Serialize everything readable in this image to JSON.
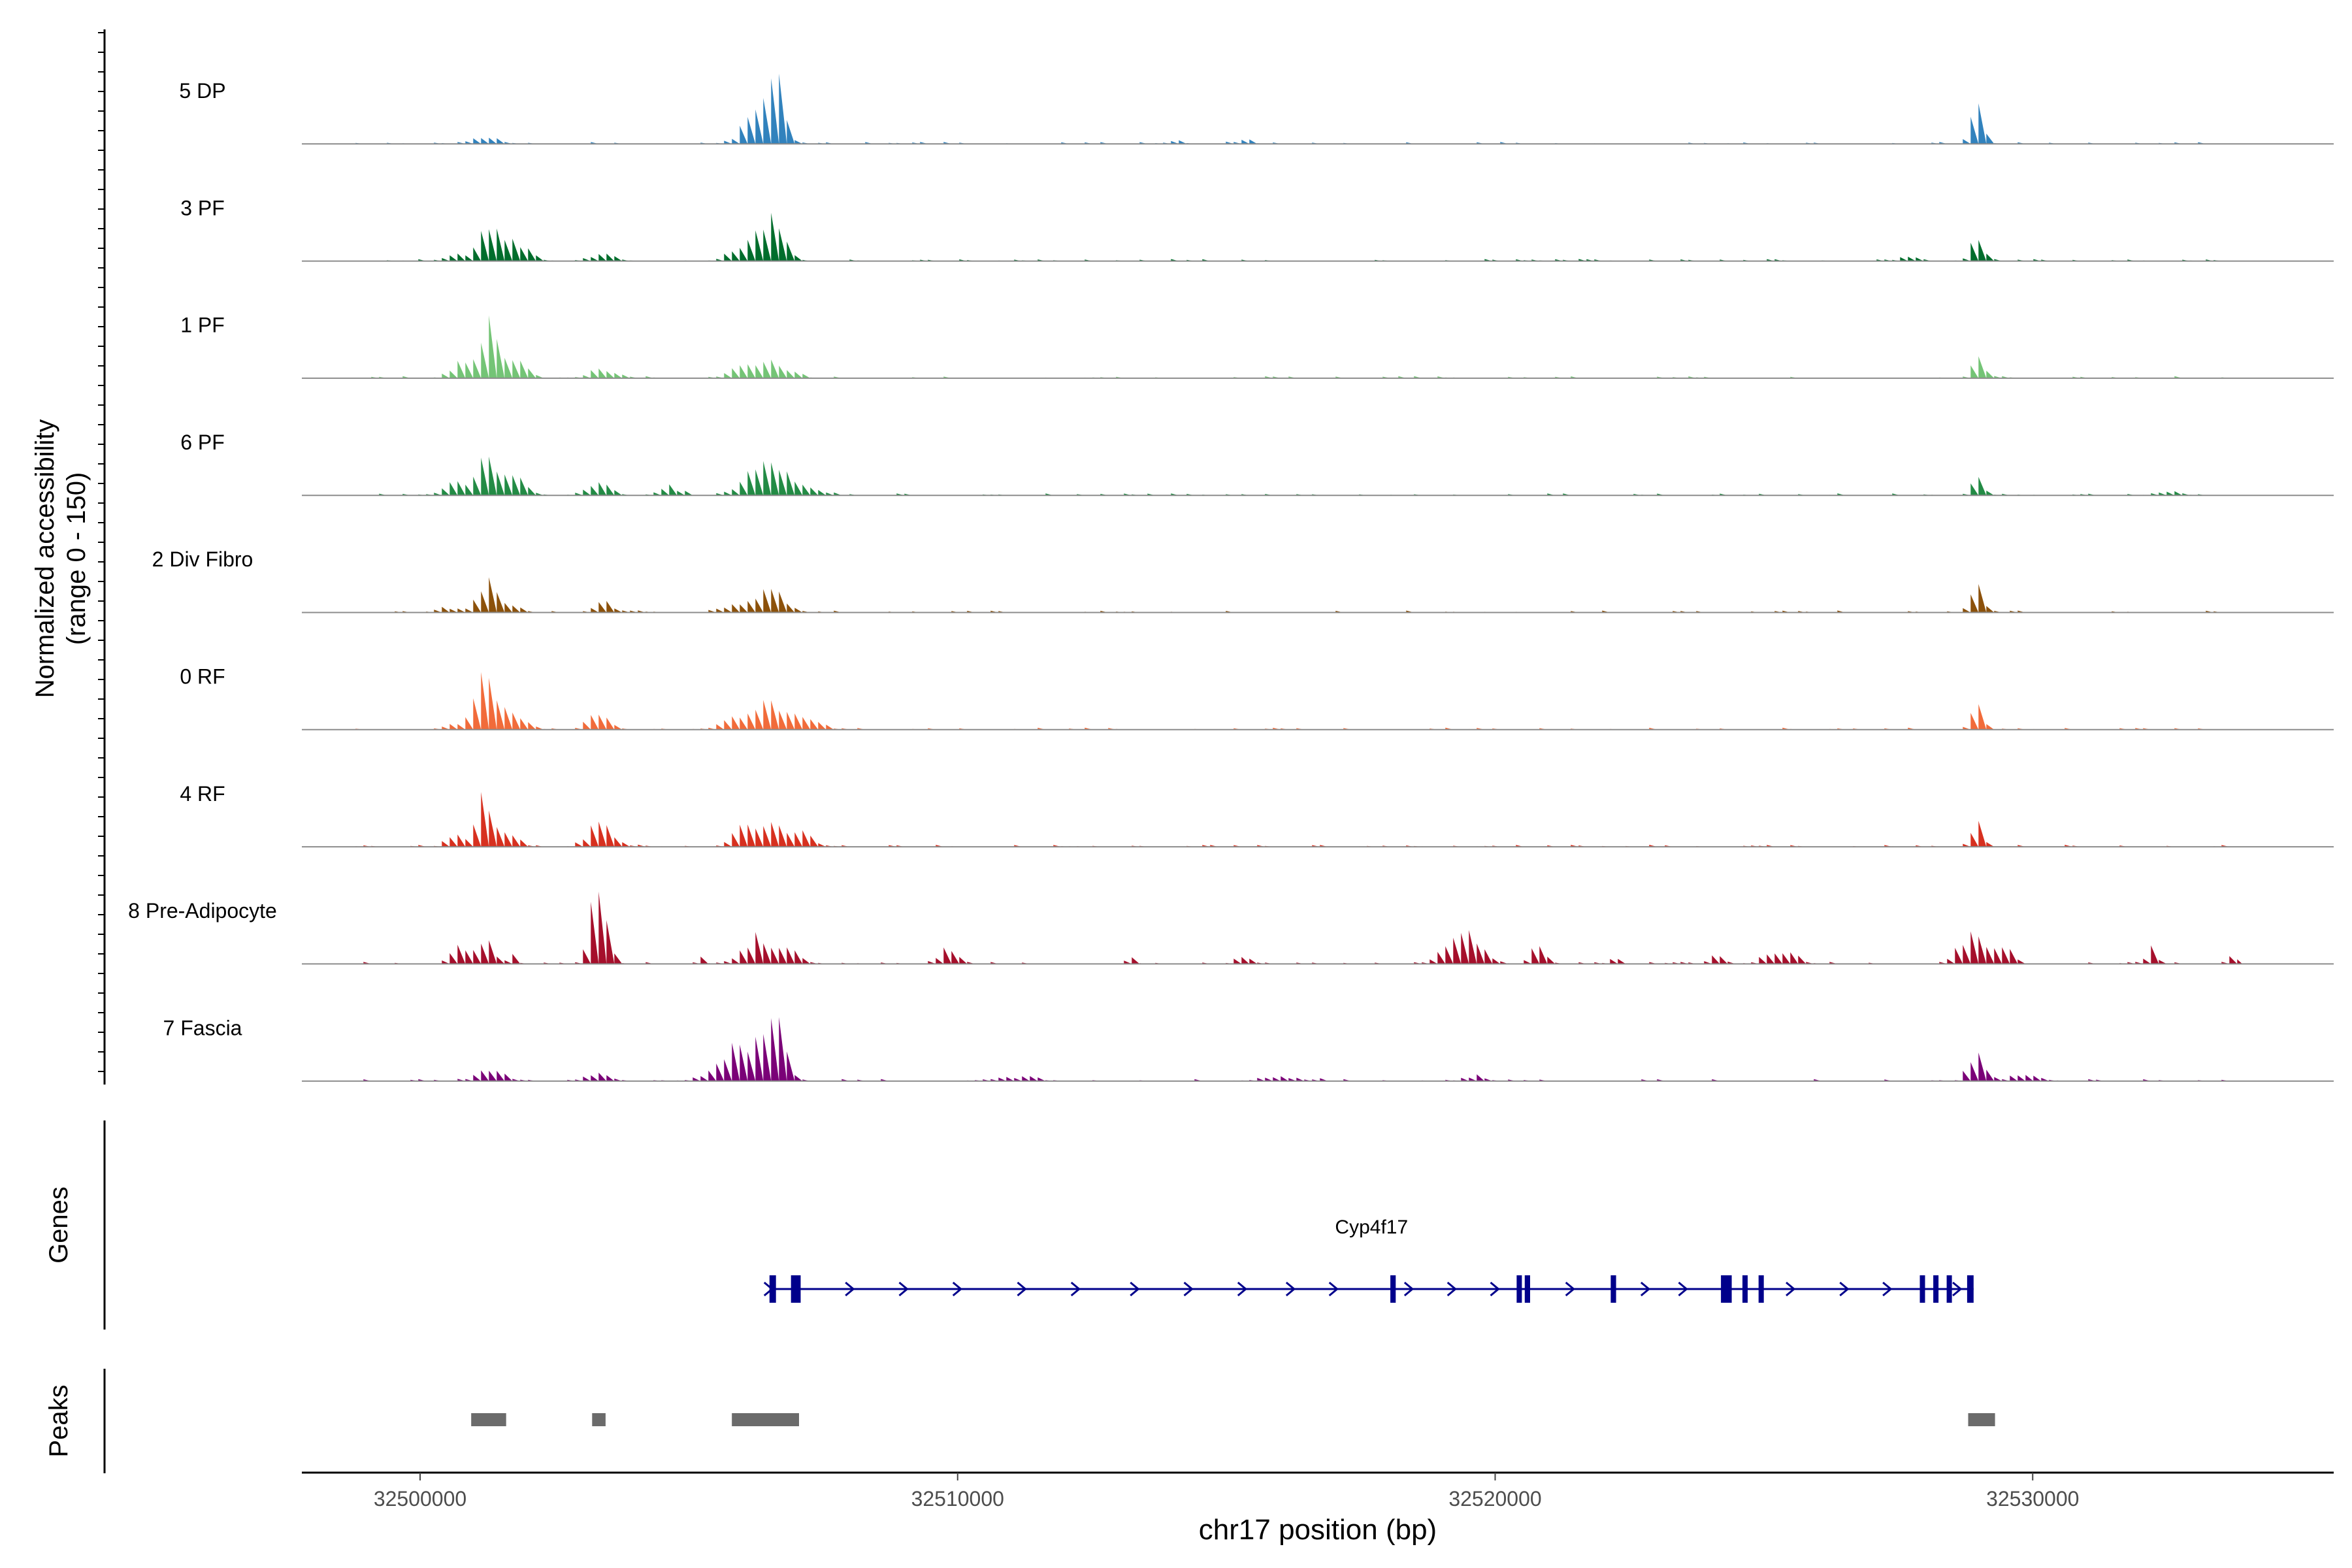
{
  "chart_data": {
    "type": "coverage-track",
    "xlabel": "chr17 position (bp)",
    "xlim": [
      32497800,
      32535600
    ],
    "x_ticks": [
      32500000,
      32510000,
      32520000,
      32530000
    ],
    "x_tick_labels": [
      "32500000",
      "32510000",
      "32520000",
      "32530000"
    ],
    "ylabel_line1": "Normalized accessibility",
    "ylabel_line2": "(range 0 - 150)",
    "ylim": [
      0,
      150
    ],
    "tracks": [
      {
        "name": "5 DP",
        "color": "#3182BD",
        "peaks": [
          [
            32501200,
            12,
            250
          ],
          [
            32506300,
            50,
            300
          ],
          [
            32506600,
            95,
            140
          ],
          [
            32514000,
            5,
            200
          ],
          [
            32515300,
            10,
            140
          ],
          [
            32528950,
            80,
            120
          ]
        ]
      },
      {
        "name": "3 PF",
        "color": "#006D2C",
        "peaks": [
          [
            32500600,
            10,
            200
          ],
          [
            32501300,
            60,
            230
          ],
          [
            32501800,
            28,
            240
          ],
          [
            32503400,
            12,
            200
          ],
          [
            32506200,
            40,
            330
          ],
          [
            32506600,
            55,
            190
          ],
          [
            32527700,
            8,
            200
          ],
          [
            32528950,
            42,
            110
          ]
        ]
      },
      {
        "name": "1 PF",
        "color": "#74C476",
        "peaks": [
          [
            32500700,
            28,
            180
          ],
          [
            32501250,
            85,
            170
          ],
          [
            32501700,
            40,
            220
          ],
          [
            32503400,
            15,
            280
          ],
          [
            32506000,
            18,
            260
          ],
          [
            32506600,
            28,
            260
          ],
          [
            32528950,
            45,
            110
          ]
        ]
      },
      {
        "name": "6 PF",
        "color": "#238B45",
        "peaks": [
          [
            32500600,
            22,
            220
          ],
          [
            32501200,
            60,
            180
          ],
          [
            32501700,
            42,
            230
          ],
          [
            32503300,
            20,
            240
          ],
          [
            32504600,
            15,
            200
          ],
          [
            32506100,
            35,
            240
          ],
          [
            32506600,
            60,
            220
          ],
          [
            32507200,
            15,
            240
          ],
          [
            32528950,
            38,
            110
          ],
          [
            32532500,
            8,
            220
          ]
        ]
      },
      {
        "name": "2 Div Fibro",
        "color": "#8C510A",
        "peaks": [
          [
            32500500,
            10,
            200
          ],
          [
            32501200,
            55,
            160
          ],
          [
            32501600,
            18,
            200
          ],
          [
            32503400,
            18,
            200
          ],
          [
            32505800,
            12,
            250
          ],
          [
            32506500,
            45,
            260
          ],
          [
            32528950,
            45,
            120
          ]
        ]
      },
      {
        "name": "0 RF",
        "color": "#F16B3A",
        "peaks": [
          [
            32500600,
            8,
            220
          ],
          [
            32501200,
            90,
            200
          ],
          [
            32501700,
            30,
            240
          ],
          [
            32503300,
            35,
            200
          ],
          [
            32505800,
            18,
            260
          ],
          [
            32506500,
            45,
            320
          ],
          [
            32507200,
            18,
            240
          ],
          [
            32528950,
            45,
            100
          ]
        ]
      },
      {
        "name": "4 RF",
        "color": "#D7301F",
        "peaks": [
          [
            32500600,
            25,
            150
          ],
          [
            32501200,
            85,
            160
          ],
          [
            32501600,
            22,
            200
          ],
          [
            32503350,
            40,
            230
          ],
          [
            32506000,
            30,
            220
          ],
          [
            32506600,
            35,
            260
          ],
          [
            32507100,
            20,
            220
          ],
          [
            32528950,
            45,
            100
          ]
        ]
      },
      {
        "name": "8 Pre-Adipocyte",
        "color": "#A50F2B",
        "peaks": [
          [
            32500700,
            40,
            160
          ],
          [
            32501200,
            45,
            160
          ],
          [
            32501700,
            25,
            70
          ],
          [
            32503300,
            150,
            150
          ],
          [
            32505200,
            12,
            80
          ],
          [
            32506200,
            45,
            230
          ],
          [
            32506800,
            30,
            200
          ],
          [
            32509800,
            30,
            180
          ],
          [
            32513200,
            10,
            90
          ],
          [
            32515300,
            12,
            150
          ],
          [
            32519400,
            65,
            300
          ],
          [
            32520800,
            35,
            140
          ],
          [
            32522200,
            12,
            80
          ],
          [
            32524100,
            20,
            140
          ],
          [
            32525300,
            28,
            260
          ],
          [
            32528900,
            50,
            280
          ],
          [
            32529500,
            25,
            130
          ],
          [
            32532200,
            30,
            100
          ],
          [
            32533700,
            12,
            120
          ]
        ]
      },
      {
        "name": "7 Fascia",
        "color": "#7A0177",
        "peaks": [
          [
            32501300,
            22,
            240
          ],
          [
            32503300,
            15,
            220
          ],
          [
            32506000,
            65,
            400
          ],
          [
            32506600,
            95,
            180
          ],
          [
            32511000,
            8,
            400
          ],
          [
            32516000,
            8,
            400
          ],
          [
            32519600,
            10,
            200
          ],
          [
            32528950,
            60,
            150
          ],
          [
            32529800,
            10,
            300
          ]
        ]
      }
    ],
    "baseline_noise": 3,
    "genes_label": "Genes",
    "gene": {
      "name": "Cyp4f17",
      "start": 32506500,
      "end": 32528900,
      "strand": "+",
      "color": "#00008B",
      "exons": [
        [
          32506500,
          32506620
        ],
        [
          32506900,
          32507080
        ],
        [
          32518050,
          32518150
        ],
        [
          32520400,
          32520480
        ],
        [
          32520550,
          32520650
        ],
        [
          32522150,
          32522250
        ],
        [
          32524200,
          32524400
        ],
        [
          32524600,
          32524680
        ],
        [
          32524900,
          32524980
        ],
        [
          32527900,
          32527980
        ],
        [
          32528150,
          32528230
        ],
        [
          32528400,
          32528480
        ],
        [
          32528780,
          32528900
        ]
      ],
      "arrows": [
        32507000,
        32508000,
        32509000,
        32510000,
        32511200,
        32512200,
        32513300,
        32514300,
        32515300,
        32516200,
        32517000,
        32518400,
        32519200,
        32520000,
        32521400,
        32522800,
        32523500,
        32525500,
        32526500,
        32527300,
        32528600
      ]
    },
    "peaks_label": "Peaks",
    "peak_regions": [
      [
        32500950,
        32501600
      ],
      [
        32503200,
        32503450
      ],
      [
        32505800,
        32507050
      ],
      [
        32528800,
        32529300
      ]
    ],
    "peak_color": "#6B6B6B"
  }
}
